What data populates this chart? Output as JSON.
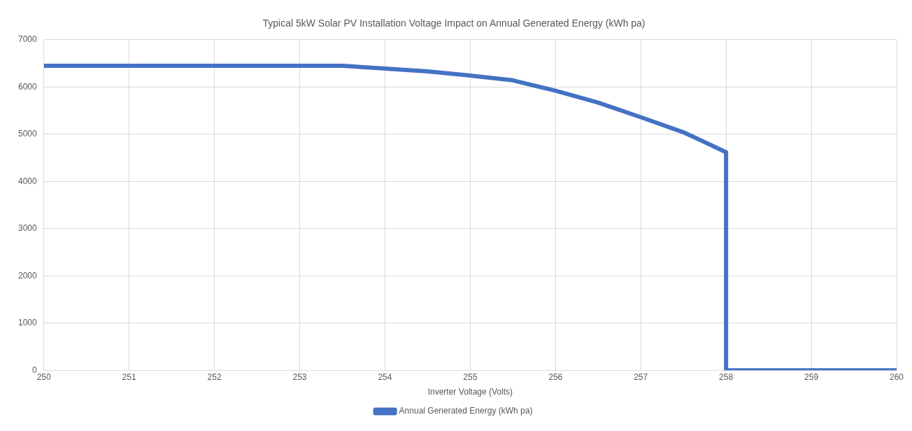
{
  "chart_data": {
    "type": "line",
    "title": "Typical 5kW Solar PV Installation Voltage Impact on Annual Generated Energy (kWh pa)",
    "xlabel": "Inverter Voltage (Volts)",
    "x": [
      250,
      253.5,
      254,
      254.5,
      255,
      255.5,
      256,
      256.5,
      257,
      257.5,
      258,
      258,
      260
    ],
    "series": [
      {
        "name": "Annual Generated Energy (kWh pa)",
        "color": "#4472c4",
        "values": [
          6450,
          6450,
          6390,
          6330,
          6240,
          6140,
          5920,
          5670,
          5360,
          5040,
          4620,
          0,
          0
        ]
      }
    ],
    "xlim": [
      250,
      260
    ],
    "xticks": [
      250,
      251,
      252,
      253,
      254,
      255,
      256,
      257,
      258,
      259,
      260
    ],
    "ylim": [
      0,
      7000
    ],
    "yticks": [
      0,
      1000,
      2000,
      3000,
      4000,
      5000,
      6000,
      7000
    ],
    "grid": true,
    "legend": "bottom",
    "marker": "none",
    "line_style": "solid"
  }
}
